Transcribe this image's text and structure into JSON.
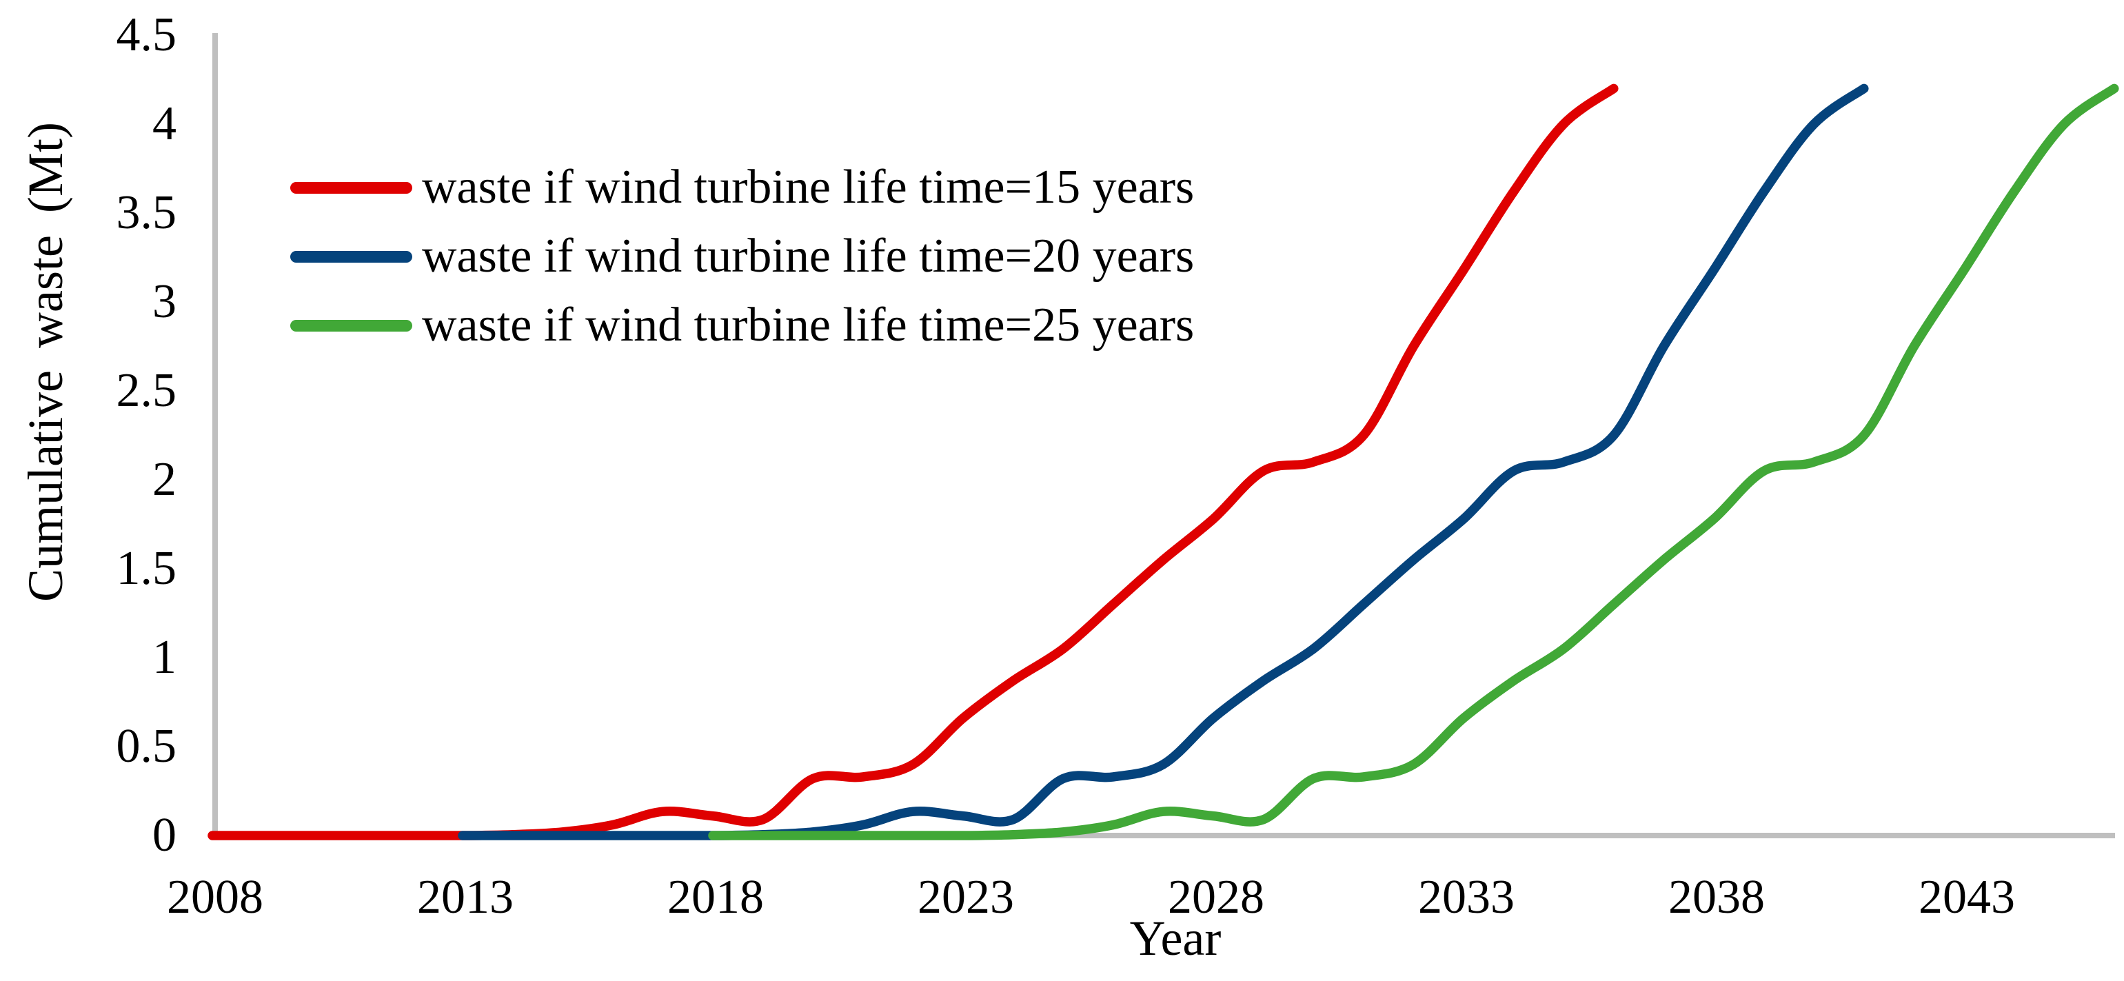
{
  "chart_data": {
    "type": "line",
    "title": "",
    "xlabel": "Year",
    "ylabel": "Cumulative waste  (Mt)",
    "x_ticks": [
      2008,
      2013,
      2018,
      2023,
      2028,
      2033,
      2038,
      2043
    ],
    "y_ticks": [
      0,
      0.5,
      1,
      1.5,
      2,
      2.5,
      3,
      3.5,
      4,
      4.5
    ],
    "xlim": [
      2008,
      2046.2
    ],
    "ylim": [
      0,
      4.5
    ],
    "grid": false,
    "legend_position": "upper-left",
    "axis_color": "#BFBFBF",
    "text_color": "#000000",
    "line_width": 13.5,
    "series": [
      {
        "name": "waste if wind turbine life time=15 years",
        "color": "#DF0000",
        "years": [
          2008,
          2009,
          2010,
          2011,
          2012,
          2013,
          2014,
          2015,
          2016,
          2017,
          2018,
          2019,
          2020,
          2021,
          2022,
          2023,
          2024,
          2025,
          2026,
          2027,
          2028,
          2029,
          2030,
          2031,
          2032,
          2033,
          2034,
          2035,
          2036
        ],
        "values": [
          0,
          0,
          0,
          0,
          0,
          0,
          0.005,
          0.02,
          0.06,
          0.135,
          0.11,
          0.09,
          0.32,
          0.33,
          0.4,
          0.66,
          0.87,
          1.05,
          1.3,
          1.55,
          1.78,
          2.05,
          2.1,
          2.25,
          2.75,
          3.18,
          3.62,
          4.0,
          4.2
        ]
      },
      {
        "name": "waste if wind turbine life time=20 years",
        "color": "#05437C",
        "years": [
          2013,
          2014,
          2015,
          2016,
          2017,
          2018,
          2019,
          2020,
          2021,
          2022,
          2023,
          2024,
          2025,
          2026,
          2027,
          2028,
          2029,
          2030,
          2031,
          2032,
          2033,
          2034,
          2035,
          2036,
          2037,
          2038,
          2039,
          2040,
          2041
        ],
        "values": [
          0,
          0,
          0,
          0,
          0,
          0,
          0.005,
          0.02,
          0.06,
          0.135,
          0.11,
          0.09,
          0.32,
          0.33,
          0.4,
          0.66,
          0.87,
          1.05,
          1.3,
          1.55,
          1.78,
          2.05,
          2.1,
          2.25,
          2.75,
          3.18,
          3.62,
          4.0,
          4.2
        ]
      },
      {
        "name": "waste if wind turbine life time=25 years",
        "color": "#41A837",
        "years": [
          2018,
          2019,
          2020,
          2021,
          2022,
          2023,
          2024,
          2025,
          2026,
          2027,
          2028,
          2029,
          2030,
          2031,
          2032,
          2033,
          2034,
          2035,
          2036,
          2037,
          2038,
          2039,
          2040,
          2041,
          2042,
          2043,
          2044,
          2045,
          2046
        ],
        "values": [
          0,
          0,
          0,
          0,
          0,
          0,
          0.005,
          0.02,
          0.06,
          0.135,
          0.11,
          0.09,
          0.32,
          0.33,
          0.4,
          0.66,
          0.87,
          1.05,
          1.3,
          1.55,
          1.78,
          2.05,
          2.1,
          2.25,
          2.75,
          3.18,
          3.62,
          4.0,
          4.2
        ]
      }
    ]
  }
}
